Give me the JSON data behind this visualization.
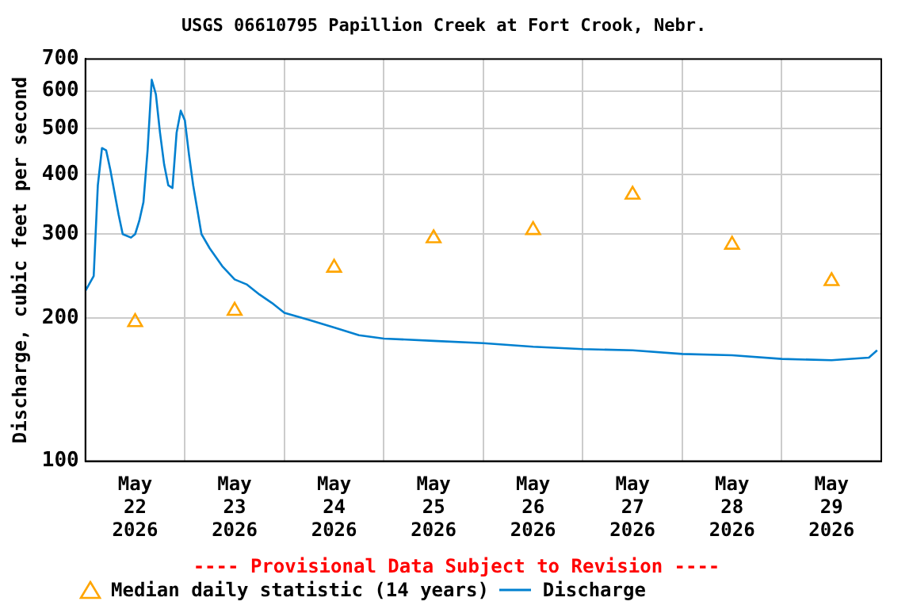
{
  "chart_data": {
    "type": "line",
    "title": "USGS 06610795 Papillion Creek at Fort Crook, Nebr.",
    "ylabel": "Discharge, cubic feet per second",
    "annotations": [
      "---- Provisional Data Subject to Revision ----"
    ],
    "log": "y",
    "grid": true,
    "legend": "bottom",
    "ylim": [
      100,
      700
    ],
    "yticks": [
      100,
      200,
      300,
      400,
      500,
      600,
      700
    ],
    "xlim": [
      "2026-05-22T00:00",
      "2026-05-30T00:00"
    ],
    "xticks": [
      {
        "value": "2026-05-22T12:00",
        "label": "May 22 2026"
      },
      {
        "value": "2026-05-23T00:00",
        "label": null
      },
      {
        "value": "2026-05-23T12:00",
        "label": "May 23 2026"
      },
      {
        "value": "2026-05-24T00:00",
        "label": null
      },
      {
        "value": "2026-05-24T12:00",
        "label": "May 24 2026"
      },
      {
        "value": "2026-05-25T00:00",
        "label": null
      },
      {
        "value": "2026-05-25T12:00",
        "label": "May 25 2026"
      },
      {
        "value": "2026-05-26T00:00",
        "label": null
      },
      {
        "value": "2026-05-26T12:00",
        "label": "May 26 2026"
      },
      {
        "value": "2026-05-27T00:00",
        "label": null
      },
      {
        "value": "2026-05-27T12:00",
        "label": "May 27 2026"
      },
      {
        "value": "2026-05-28T00:00",
        "label": null
      },
      {
        "value": "2026-05-28T12:00",
        "label": "May 28 2026"
      },
      {
        "value": "2026-05-29T00:00",
        "label": null
      },
      {
        "value": "2026-05-29T12:00",
        "label": "May 29 2026"
      }
    ],
    "series": [
      {
        "name": "Median daily statistic (14 years)",
        "type": "scatter",
        "marker": "triangle",
        "color": "#ffa500",
        "x": [
          "2026-05-22T12:00",
          "2026-05-23T12:00",
          "2026-05-24T12:00",
          "2026-05-25T12:00",
          "2026-05-26T12:00",
          "2026-05-27T12:00",
          "2026-05-28T12:00",
          "2026-05-29T12:00"
        ],
        "values": [
          196,
          207,
          255,
          294,
          306,
          363,
          285,
          239
        ]
      },
      {
        "name": "Discharge",
        "color": "#0080d0",
        "x": [
          "2026-05-22T00:00",
          "2026-05-22T02:00",
          "2026-05-22T03:00",
          "2026-05-22T04:00",
          "2026-05-22T05:00",
          "2026-05-22T06:00",
          "2026-05-22T08:00",
          "2026-05-22T09:00",
          "2026-05-22T11:00",
          "2026-05-22T12:00",
          "2026-05-22T13:00",
          "2026-05-22T14:00",
          "2026-05-22T15:00",
          "2026-05-22T16:00",
          "2026-05-22T17:00",
          "2026-05-22T18:00",
          "2026-05-22T19:00",
          "2026-05-22T20:00",
          "2026-05-22T21:00",
          "2026-05-22T22:00",
          "2026-05-22T23:00",
          "2026-05-23T00:00",
          "2026-05-23T01:00",
          "2026-05-23T02:00",
          "2026-05-23T04:00",
          "2026-05-23T06:00",
          "2026-05-23T09:00",
          "2026-05-23T12:00",
          "2026-05-23T15:00",
          "2026-05-23T18:00",
          "2026-05-23T21:00",
          "2026-05-24T00:00",
          "2026-05-24T06:00",
          "2026-05-24T12:00",
          "2026-05-24T18:00",
          "2026-05-25T00:00",
          "2026-05-25T12:00",
          "2026-05-26T00:00",
          "2026-05-26T12:00",
          "2026-05-27T00:00",
          "2026-05-27T12:00",
          "2026-05-28T00:00",
          "2026-05-28T12:00",
          "2026-05-29T00:00",
          "2026-05-29T12:00",
          "2026-05-29T21:00",
          "2026-05-29T23:00"
        ],
        "values": [
          228,
          245,
          380,
          455,
          450,
          410,
          330,
          300,
          295,
          300,
          320,
          350,
          450,
          633,
          590,
          490,
          420,
          380,
          375,
          490,
          545,
          520,
          440,
          380,
          300,
          280,
          257,
          241,
          235,
          224,
          215,
          205,
          198,
          191,
          184,
          181,
          179,
          177,
          174,
          172,
          171,
          168,
          167,
          164,
          163,
          165,
          171
        ]
      }
    ]
  }
}
